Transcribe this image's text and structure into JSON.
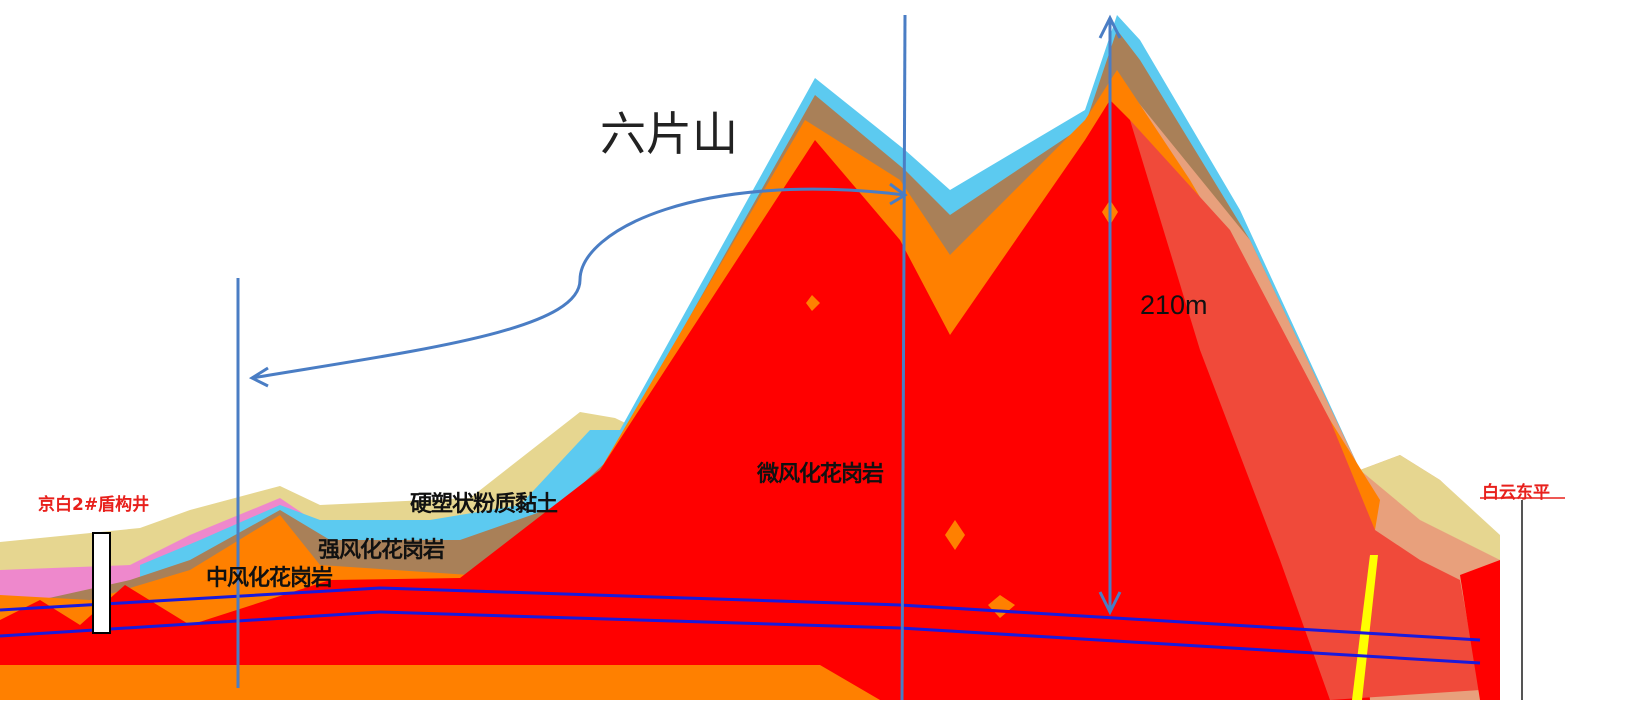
{
  "title": "六片山",
  "height_label": "210m",
  "layers": {
    "slightly_weathered": "微风化花岗岩",
    "hard_plastic_clay": "硬塑状粉质黏土",
    "strongly_weathered": "强风化花岗岩",
    "moderately_weathered": "中风化花岗岩"
  },
  "stations": {
    "left": "京白2#盾构井",
    "right": "白云东平"
  },
  "colors": {
    "slightly_weathered": "#ff0000",
    "faulted_rock": "#f04a3a",
    "moderately_weathered": "#ff8000",
    "strongly_weathered": "#a98058",
    "clay": "#e6d690",
    "sand_blue": "#5ccaf0",
    "pink": "#ee88cc",
    "tunnel_line": "#1a1adc",
    "annotation": "#4a7dc4",
    "station_text": "#e8201c"
  }
}
